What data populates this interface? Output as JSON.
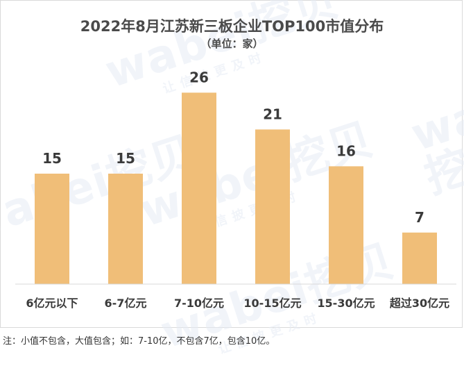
{
  "watermark": {
    "brand": "wabei挖贝",
    "slogan": "让信披更及时"
  },
  "chart_data": {
    "type": "bar",
    "title": "2022年8月江苏新三板企业TOP100市值分布",
    "subtitle": "（单位：家）",
    "categories": [
      "6亿元以下",
      "6-7亿元",
      "7-10亿元",
      "10-15亿元",
      "15-30亿元",
      "超过30亿元"
    ],
    "values": [
      15,
      15,
      26,
      21,
      16,
      7
    ],
    "ylim": [
      0,
      30
    ],
    "grid": false,
    "legend": "none",
    "bar_color": "#f0be78",
    "label_color": "#3a3a3a"
  },
  "footnote": "注：小值不包含，大值包含；如：7-10亿，不包含7亿，包含10亿。"
}
